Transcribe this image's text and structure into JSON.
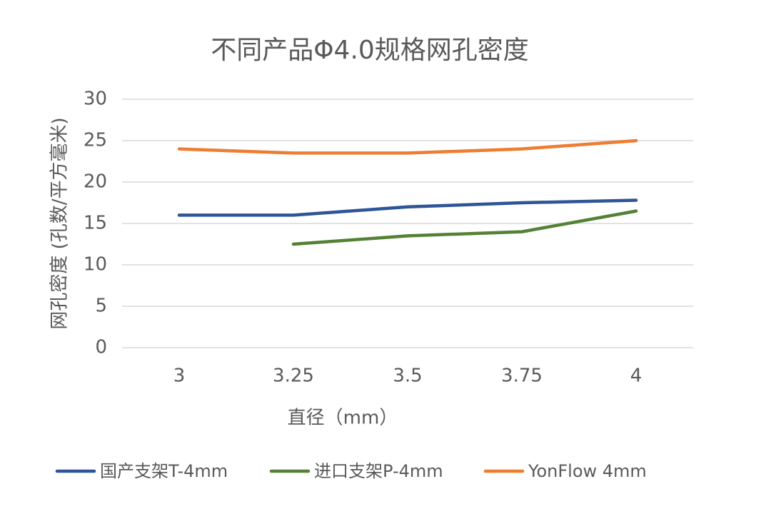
{
  "chart_data": {
    "type": "line",
    "title": "不同产品Φ4.0规格网孔密度",
    "x_label": "直径（mm）",
    "y_label": "网孔密度 (孔数/平方毫米)",
    "categories": [
      "3",
      "3.25",
      "3.5",
      "3.75",
      "4"
    ],
    "series": [
      {
        "name": "国产支架T-4mm",
        "color": "#2e5597",
        "values": [
          16,
          16,
          17,
          17.5,
          17.8
        ]
      },
      {
        "name": "进口支架P-4mm",
        "color": "#548235",
        "values": [
          null,
          12.5,
          13.5,
          14,
          16.5
        ]
      },
      {
        "name": "YonFlow 4mm",
        "color": "#ed7d31",
        "values": [
          24,
          23.5,
          23.5,
          24,
          25
        ]
      }
    ],
    "ylim": [
      0,
      30
    ],
    "yticks": [
      0,
      5,
      10,
      15,
      20,
      25,
      30
    ],
    "grid": true,
    "legend": "bottom"
  }
}
